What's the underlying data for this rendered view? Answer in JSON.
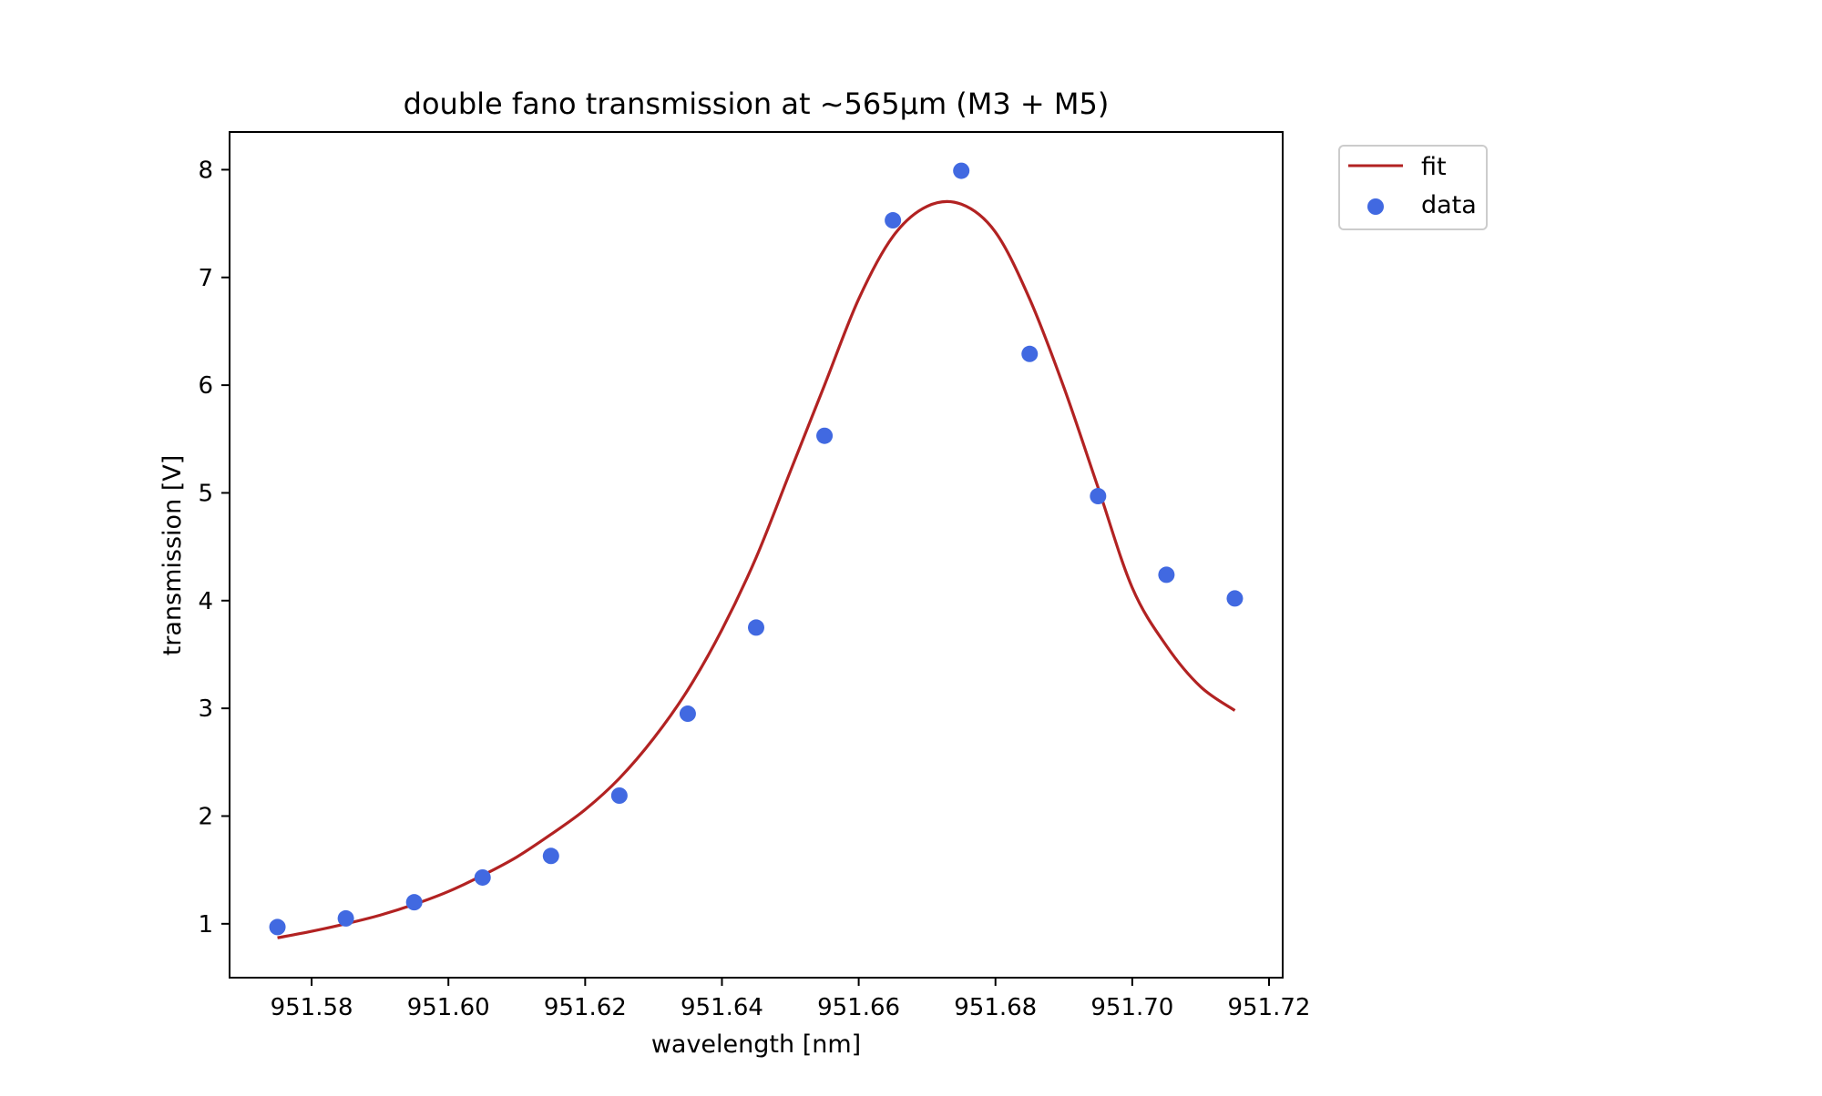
{
  "chart_data": {
    "type": "scatter",
    "title": "double fano transmission at ~565µm (M3 + M5)",
    "xlabel": "wavelength [nm]",
    "ylabel": "transmission [V]",
    "xlim": [
      951.568,
      951.722
    ],
    "ylim": [
      0.5,
      8.35
    ],
    "xticks": [
      951.58,
      951.6,
      951.62,
      951.64,
      951.66,
      951.68,
      951.7,
      951.72
    ],
    "xtick_labels": [
      "951.58",
      "951.60",
      "951.62",
      "951.64",
      "951.66",
      "951.68",
      "951.70",
      "951.72"
    ],
    "yticks": [
      1,
      2,
      3,
      4,
      5,
      6,
      7,
      8
    ],
    "ytick_labels": [
      "1",
      "2",
      "3",
      "4",
      "5",
      "6",
      "7",
      "8"
    ],
    "grid": false,
    "legend_position": "outside-top-right",
    "series": [
      {
        "name": "fit",
        "kind": "line",
        "color": "#b22222",
        "x": [
          951.575,
          951.58,
          951.585,
          951.59,
          951.595,
          951.6,
          951.605,
          951.61,
          951.615,
          951.62,
          951.625,
          951.63,
          951.635,
          951.64,
          951.645,
          951.65,
          951.655,
          951.66,
          951.665,
          951.67,
          951.675,
          951.68,
          951.685,
          951.69,
          951.695,
          951.7,
          951.705,
          951.71,
          951.715
        ],
        "y": [
          0.87,
          0.93,
          1.0,
          1.08,
          1.18,
          1.3,
          1.45,
          1.62,
          1.83,
          2.06,
          2.35,
          2.72,
          3.17,
          3.73,
          4.4,
          5.2,
          6.0,
          6.8,
          7.38,
          7.66,
          7.68,
          7.42,
          6.8,
          5.98,
          5.05,
          4.12,
          3.58,
          3.2,
          2.98
        ]
      },
      {
        "name": "data",
        "kind": "scatter",
        "color": "#4169e1",
        "x": [
          951.575,
          951.585,
          951.595,
          951.605,
          951.615,
          951.625,
          951.635,
          951.645,
          951.655,
          951.665,
          951.675,
          951.685,
          951.695,
          951.705,
          951.715
        ],
        "y": [
          0.97,
          1.05,
          1.2,
          1.43,
          1.63,
          2.19,
          2.95,
          3.75,
          5.53,
          7.53,
          7.99,
          6.29,
          4.97,
          4.24,
          4.02
        ]
      }
    ]
  }
}
